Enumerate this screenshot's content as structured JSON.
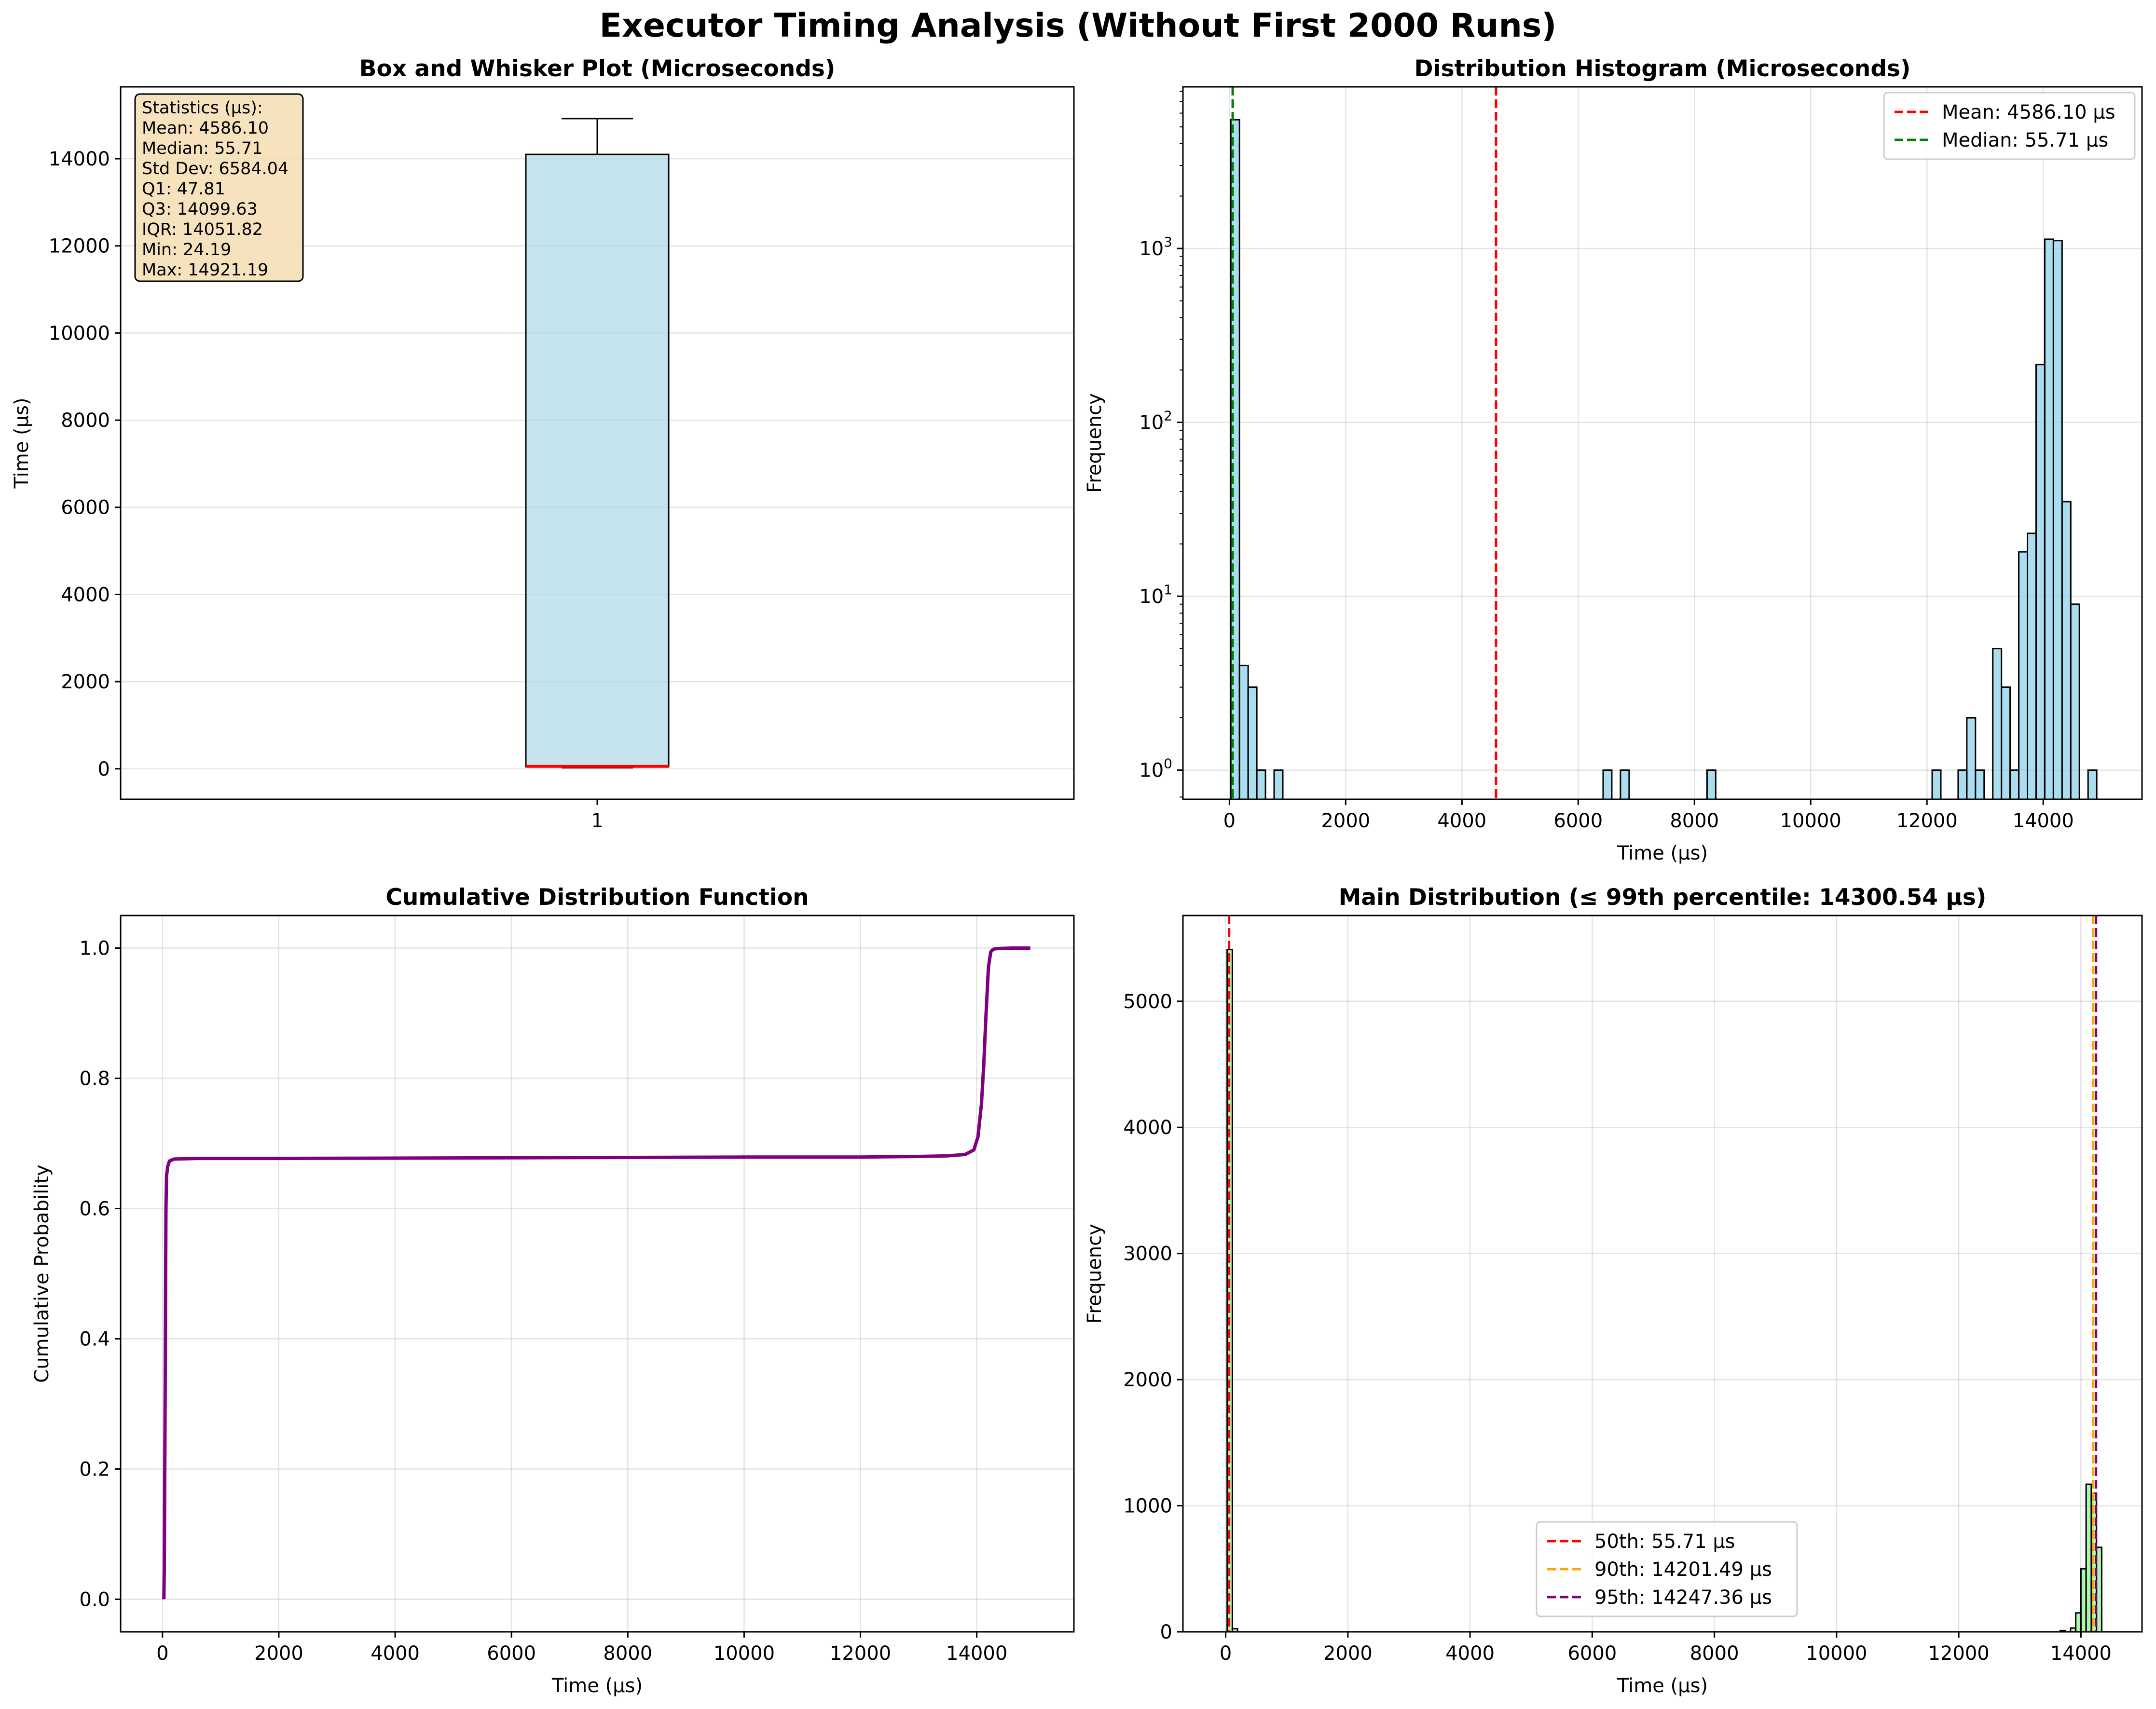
{
  "figure_title": "Executor Timing Analysis (Without First 2000 Runs)",
  "chart_data": [
    {
      "id": "box",
      "type": "box",
      "title": "Box and Whisker Plot (Microseconds)",
      "xlabel": "",
      "ylabel": "Time (µs)",
      "categories": [
        "1"
      ],
      "ylim": [
        -700,
        15650
      ],
      "yticks": [
        0,
        2000,
        4000,
        6000,
        8000,
        10000,
        12000,
        14000
      ],
      "box": {
        "q1": 47.81,
        "median": 55.71,
        "q3": 14099.63,
        "whisker_low": 24.19,
        "whisker_high": 14921.19
      },
      "box_color": "#add8e6",
      "median_color": "#ff0000",
      "grid": true,
      "stats_title": "Statistics (µs):",
      "stats": [
        {
          "label": "Mean",
          "value": "4586.10"
        },
        {
          "label": "Median",
          "value": "55.71"
        },
        {
          "label": "Std Dev",
          "value": "6584.04"
        },
        {
          "label": "Q1",
          "value": "47.81"
        },
        {
          "label": "Q3",
          "value": "14099.63"
        },
        {
          "label": "IQR",
          "value": "14051.82"
        },
        {
          "label": "Min",
          "value": "24.19"
        },
        {
          "label": "Max",
          "value": "14921.19"
        }
      ]
    },
    {
      "id": "hist",
      "type": "bar",
      "title": "Distribution Histogram (Microseconds)",
      "xlabel": "Time (µs)",
      "ylabel": "Frequency",
      "log_y": true,
      "xlim": [
        -800,
        15700
      ],
      "ylim": [
        0.68,
        8500
      ],
      "xticks": [
        0,
        2000,
        4000,
        6000,
        8000,
        10000,
        12000,
        14000
      ],
      "yticks": [
        1,
        10,
        100,
        1000
      ],
      "bin_width": 149,
      "bins": [
        {
          "x": 24,
          "count": 5500
        },
        {
          "x": 173,
          "count": 4
        },
        {
          "x": 322,
          "count": 3
        },
        {
          "x": 471,
          "count": 1
        },
        {
          "x": 769,
          "count": 1
        },
        {
          "x": 6429,
          "count": 1
        },
        {
          "x": 6727,
          "count": 1
        },
        {
          "x": 8217,
          "count": 1
        },
        {
          "x": 12090,
          "count": 1
        },
        {
          "x": 12537,
          "count": 1
        },
        {
          "x": 12686,
          "count": 2
        },
        {
          "x": 12835,
          "count": 1
        },
        {
          "x": 13133,
          "count": 5
        },
        {
          "x": 13282,
          "count": 3
        },
        {
          "x": 13431,
          "count": 1
        },
        {
          "x": 13580,
          "count": 18
        },
        {
          "x": 13729,
          "count": 23
        },
        {
          "x": 13878,
          "count": 215
        },
        {
          "x": 14027,
          "count": 1130
        },
        {
          "x": 14176,
          "count": 1110
        },
        {
          "x": 14325,
          "count": 35
        },
        {
          "x": 14474,
          "count": 9
        },
        {
          "x": 14772,
          "count": 1
        }
      ],
      "bar_color": "#87ceeb",
      "lines": [
        {
          "name": "Mean: 4586.10 µs",
          "x": 4586.1,
          "color": "#ff0000"
        },
        {
          "name": "Median: 55.71 µs",
          "x": 55.71,
          "color": "#008000"
        }
      ],
      "legend": "top-right",
      "grid": true
    },
    {
      "id": "cdf",
      "type": "line",
      "title": "Cumulative Distribution Function",
      "xlabel": "Time (µs)",
      "ylabel": "Cumulative Probability",
      "xlim": [
        -720,
        15670
      ],
      "ylim": [
        -0.05,
        1.05
      ],
      "xticks": [
        0,
        2000,
        4000,
        6000,
        8000,
        10000,
        12000,
        14000
      ],
      "yticks": [
        0.0,
        0.2,
        0.4,
        0.6,
        0.8,
        1.0
      ],
      "series": [
        {
          "color": "#800080",
          "x": [
            24,
            30,
            40,
            45,
            50,
            55,
            60,
            70,
            90,
            120,
            200,
            600,
            2000,
            6000,
            10000,
            12000,
            13000,
            13500,
            13800,
            13950,
            14020,
            14080,
            14120,
            14160,
            14200,
            14240,
            14280,
            14320,
            14400,
            14600,
            14921
          ],
          "y": [
            0.0,
            0.04,
            0.2,
            0.3,
            0.4,
            0.5,
            0.6,
            0.65,
            0.665,
            0.673,
            0.676,
            0.677,
            0.677,
            0.678,
            0.679,
            0.679,
            0.68,
            0.681,
            0.683,
            0.69,
            0.71,
            0.76,
            0.82,
            0.9,
            0.97,
            0.994,
            0.998,
            0.999,
            0.9995,
            1.0,
            1.0
          ]
        }
      ],
      "grid": true
    },
    {
      "id": "main",
      "type": "bar",
      "title": "Main Distribution (≤ 99th percentile: 14300.54 µs)",
      "xlabel": "Time (µs)",
      "ylabel": "Frequency",
      "xlim": [
        -700,
        15000
      ],
      "ylim": [
        0,
        5680
      ],
      "xticks": [
        0,
        2000,
        4000,
        6000,
        8000,
        10000,
        12000,
        14000
      ],
      "yticks": [
        0,
        1000,
        2000,
        3000,
        4000,
        5000
      ],
      "bin_width": 85,
      "bins": [
        {
          "x": 24,
          "count": 5410
        },
        {
          "x": 109,
          "count": 25
        },
        {
          "x": 13660,
          "count": 10
        },
        {
          "x": 13830,
          "count": 30
        },
        {
          "x": 13915,
          "count": 150
        },
        {
          "x": 14000,
          "count": 500
        },
        {
          "x": 14085,
          "count": 1170
        },
        {
          "x": 14170,
          "count": 1100
        },
        {
          "x": 14255,
          "count": 670
        }
      ],
      "bar_color": "#90ee90",
      "lines": [
        {
          "name": "50th: 55.71 µs",
          "x": 55.71,
          "color": "#ff0000"
        },
        {
          "name": "90th: 14201.49 µs",
          "x": 14201.49,
          "color": "#ffa500"
        },
        {
          "name": "95th: 14247.36 µs",
          "x": 14247.36,
          "color": "#800080"
        }
      ],
      "legend": "lower-center",
      "grid": true
    }
  ]
}
